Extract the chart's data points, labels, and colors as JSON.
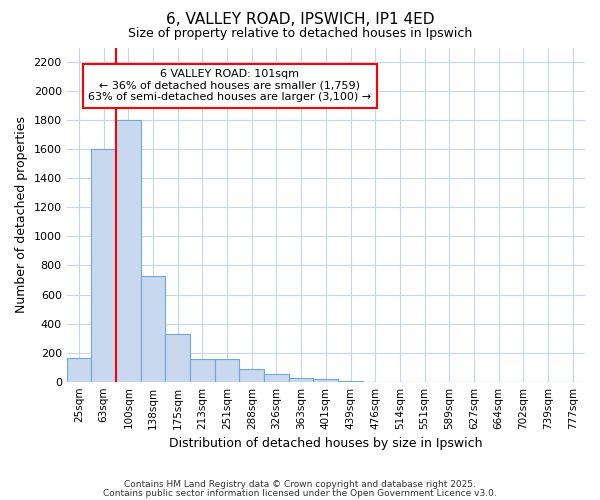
{
  "title1": "6, VALLEY ROAD, IPSWICH, IP1 4ED",
  "title2": "Size of property relative to detached houses in Ipswich",
  "xlabel": "Distribution of detached houses by size in Ipswich",
  "ylabel": "Number of detached properties",
  "categories": [
    "25sqm",
    "63sqm",
    "100sqm",
    "138sqm",
    "175sqm",
    "213sqm",
    "251sqm",
    "288sqm",
    "326sqm",
    "363sqm",
    "401sqm",
    "439sqm",
    "476sqm",
    "514sqm",
    "551sqm",
    "589sqm",
    "627sqm",
    "664sqm",
    "702sqm",
    "739sqm",
    "777sqm"
  ],
  "values": [
    160,
    1600,
    1800,
    725,
    325,
    155,
    155,
    85,
    50,
    25,
    20,
    5,
    0,
    0,
    0,
    0,
    0,
    0,
    0,
    0,
    0
  ],
  "bar_color": "#c8d8ee",
  "bar_edge_color": "#6aaad4",
  "property_line_index": 2,
  "annotation_title": "6 VALLEY ROAD: 101sqm",
  "annotation_line1": "← 36% of detached houses are smaller (1,759)",
  "annotation_line2": "63% of semi-detached houses are larger (3,100) →",
  "ylim": [
    0,
    2300
  ],
  "yticks": [
    0,
    200,
    400,
    600,
    800,
    1000,
    1200,
    1400,
    1600,
    1800,
    2000,
    2200
  ],
  "grid_color": "#c8d4e8",
  "background_color": "#ffffff",
  "footer1": "Contains HM Land Registry data © Crown copyright and database right 2025.",
  "footer2": "Contains public sector information licensed under the Open Government Licence v3.0."
}
